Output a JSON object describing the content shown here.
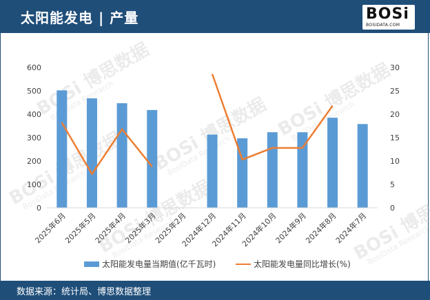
{
  "header": {
    "title": "太阳能发电 | 产量"
  },
  "logo": {
    "word": "BOSi",
    "sub": "BOSIDATA.COM"
  },
  "footer": {
    "source": "数据来源：统计局、博思数据整理"
  },
  "watermark": {
    "text": "BOSi 博思数据",
    "sub": "BosiData Research"
  },
  "colors": {
    "header_bg": "#1f4e79",
    "bar": "#5b9bd5",
    "line": "#ed7d31"
  },
  "chart_data": {
    "type": "bar",
    "categories": [
      "2025年6月",
      "2025年5月",
      "2025年4月",
      "2025年3月",
      "2025年2月",
      "2024年12月",
      "2024年11月",
      "2024年10月",
      "2024年9月",
      "2024年8月",
      "2024年7月"
    ],
    "series": [
      {
        "name": "太阳能发电量当期值(亿千瓦时)",
        "type": "bar",
        "axis": "left",
        "values": [
          502,
          468,
          447,
          418,
          null,
          313,
          297,
          323,
          323,
          385,
          358
        ]
      },
      {
        "name": "太阳能发电量同比增长(%)",
        "type": "line",
        "axis": "right",
        "values": [
          18.2,
          7.2,
          16.8,
          8.8,
          null,
          28.6,
          10.3,
          12.8,
          12.8,
          21.8,
          null
        ]
      }
    ],
    "ylim_left": [
      0,
      600
    ],
    "yticks_left": [
      "0",
      "100",
      "200",
      "300",
      "400",
      "500",
      "600"
    ],
    "ylim_right": [
      0,
      30
    ],
    "yticks_right": [
      "0",
      "5",
      "10",
      "15",
      "20",
      "25",
      "30"
    ],
    "legend_position": "bottom",
    "grid": false
  }
}
